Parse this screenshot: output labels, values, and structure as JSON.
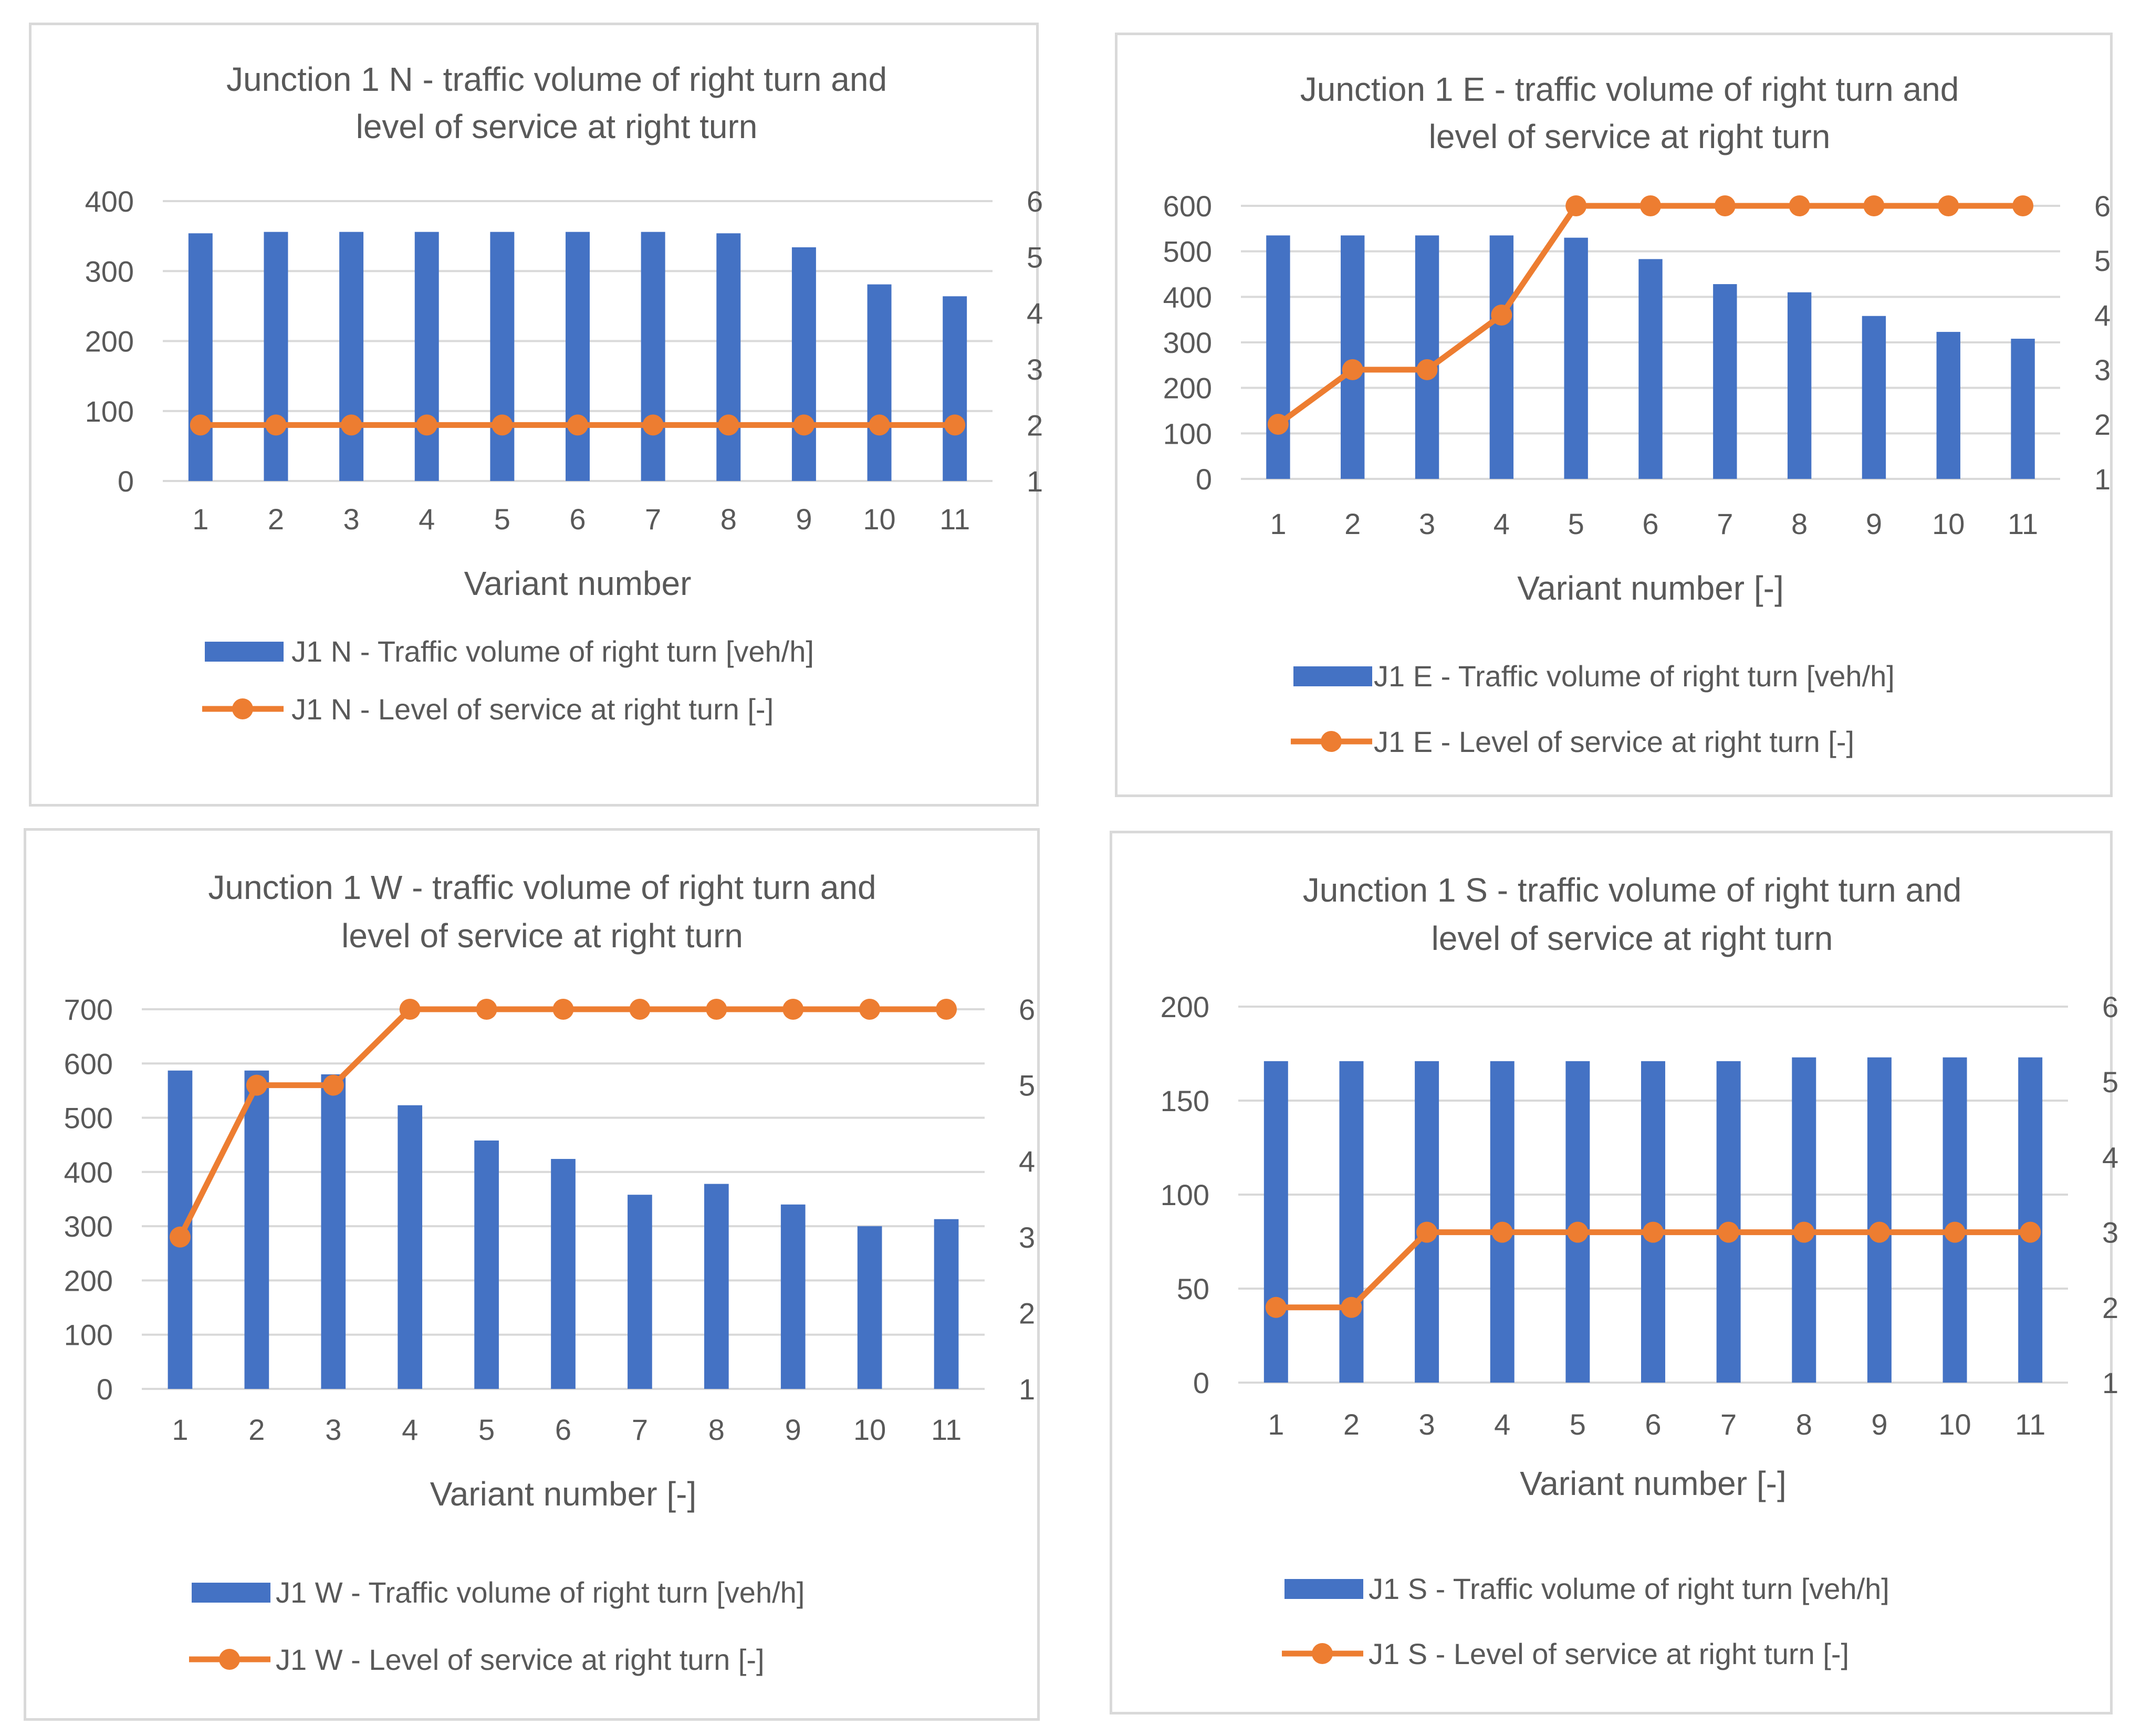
{
  "chart_data": [
    {
      "type": "bar+line",
      "title": [
        "Junction 1 N - traffic volume of right turn and",
        "level of service at right turn"
      ],
      "xlabel": "Variant number",
      "categories": [
        "1",
        "2",
        "3",
        "4",
        "5",
        "6",
        "7",
        "8",
        "9",
        "10",
        "11"
      ],
      "ylim": [
        0,
        400
      ],
      "yticks": [
        "0",
        "100",
        "200",
        "300",
        "400"
      ],
      "y2lim": [
        1,
        6
      ],
      "y2ticks": [
        "1",
        "2",
        "3",
        "4",
        "5",
        "6"
      ],
      "series": [
        {
          "name": "J1 N - Traffic volume of right turn [veh/h]",
          "kind": "bar",
          "axis": "left",
          "color": "#4472c4",
          "values": [
            354,
            356,
            356,
            356,
            356,
            356,
            356,
            354,
            334,
            281,
            264
          ]
        },
        {
          "name": "J1 N - Level of service at right turn [-]",
          "kind": "line",
          "axis": "right",
          "color": "#ed7d31",
          "values": [
            2,
            2,
            2,
            2,
            2,
            2,
            2,
            2,
            2,
            2,
            2
          ]
        }
      ],
      "legend": "bottom"
    },
    {
      "type": "bar+line",
      "title": [
        "Junction 1 E - traffic volume of right turn and",
        "level of service at right turn"
      ],
      "xlabel": "Variant number [-]",
      "categories": [
        "1",
        "2",
        "3",
        "4",
        "5",
        "6",
        "7",
        "8",
        "9",
        "10",
        "11"
      ],
      "ylim": [
        0,
        600
      ],
      "yticks": [
        "0",
        "100",
        "200",
        "300",
        "400",
        "500",
        "600"
      ],
      "y2lim": [
        1,
        6
      ],
      "y2ticks": [
        "1",
        "2",
        "3",
        "4",
        "5",
        "6"
      ],
      "series": [
        {
          "name": "J1 E - Traffic volume of right turn [veh/h]",
          "kind": "bar",
          "axis": "left",
          "color": "#4472c4",
          "values": [
            535,
            535,
            535,
            535,
            530,
            483,
            428,
            410,
            358,
            323,
            308
          ]
        },
        {
          "name": "J1 E - Level of service at right turn [-]",
          "kind": "line",
          "axis": "right",
          "color": "#ed7d31",
          "values": [
            2,
            3,
            3,
            4,
            6,
            6,
            6,
            6,
            6,
            6,
            6
          ]
        }
      ],
      "legend": "bottom"
    },
    {
      "type": "bar+line",
      "title": [
        "Junction 1 W - traffic volume of right turn and",
        "level of service at right turn"
      ],
      "xlabel": "Variant number [-]",
      "categories": [
        "1",
        "2",
        "3",
        "4",
        "5",
        "6",
        "7",
        "8",
        "9",
        "10",
        "11"
      ],
      "ylim": [
        0,
        700
      ],
      "yticks": [
        "0",
        "100",
        "200",
        "300",
        "400",
        "500",
        "600",
        "700"
      ],
      "y2lim": [
        1,
        6
      ],
      "y2ticks": [
        "1",
        "2",
        "3",
        "4",
        "5",
        "6"
      ],
      "series": [
        {
          "name": "J1 W - Traffic volume of right turn [veh/h]",
          "kind": "bar",
          "axis": "left",
          "color": "#4472c4",
          "values": [
            587,
            587,
            580,
            523,
            458,
            424,
            358,
            378,
            340,
            300,
            313
          ]
        },
        {
          "name": "J1 W - Level of service at right turn [-]",
          "kind": "line",
          "axis": "right",
          "color": "#ed7d31",
          "values": [
            3,
            5,
            5,
            6,
            6,
            6,
            6,
            6,
            6,
            6,
            6
          ]
        }
      ],
      "legend": "bottom"
    },
    {
      "type": "bar+line",
      "title": [
        "Junction 1 S - traffic volume of right turn and",
        "level of service at right turn"
      ],
      "xlabel": "Variant number [-]",
      "categories": [
        "1",
        "2",
        "3",
        "4",
        "5",
        "6",
        "7",
        "8",
        "9",
        "10",
        "11"
      ],
      "ylim": [
        0,
        200
      ],
      "yticks": [
        "0",
        "50",
        "100",
        "150",
        "200"
      ],
      "y2lim": [
        1,
        6
      ],
      "y2ticks": [
        "1",
        "2",
        "3",
        "4",
        "5",
        "6"
      ],
      "series": [
        {
          "name": "J1 S - Traffic volume of right turn [veh/h]",
          "kind": "bar",
          "axis": "left",
          "color": "#4472c4",
          "values": [
            171,
            171,
            171,
            171,
            171,
            171,
            171,
            173,
            173,
            173,
            173
          ]
        },
        {
          "name": "J1 S - Level of service at right turn [-]",
          "kind": "line",
          "axis": "right",
          "color": "#ed7d31",
          "values": [
            2,
            2,
            3,
            3,
            3,
            3,
            3,
            3,
            3,
            3,
            3
          ]
        }
      ],
      "legend": "bottom"
    }
  ]
}
